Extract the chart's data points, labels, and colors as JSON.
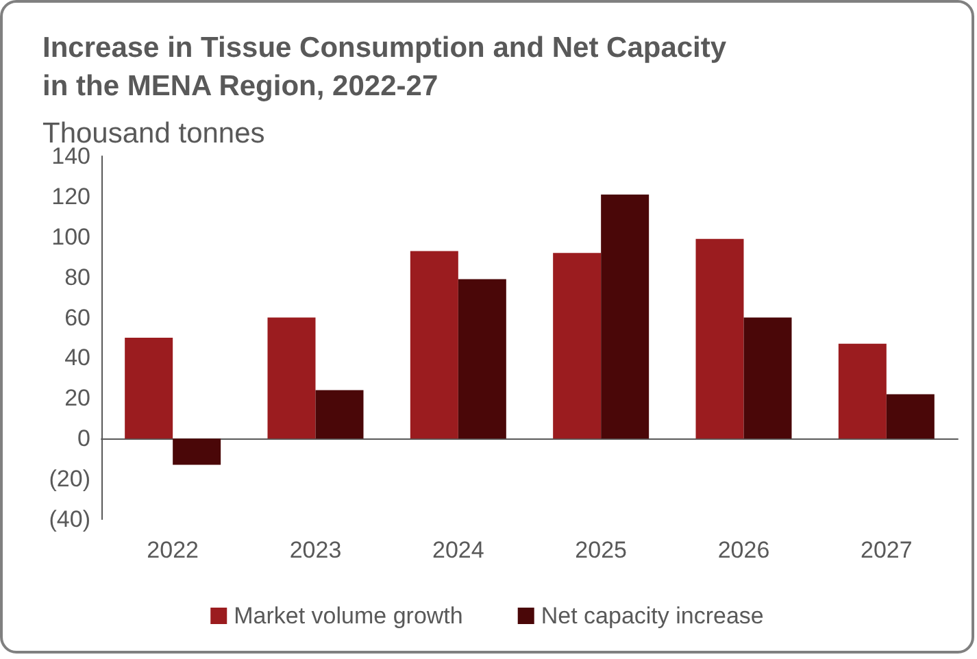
{
  "chart_data": {
    "type": "bar",
    "title": "Increase in Tissue Consumption and Net Capacity\nin the MENA Region, 2022-27",
    "subtitle": "Thousand tonnes",
    "categories": [
      "2022",
      "2023",
      "2024",
      "2025",
      "2026",
      "2027"
    ],
    "series": [
      {
        "name": "Market volume growth",
        "color": "#9b1c1f",
        "values": [
          50,
          60,
          93,
          92,
          99,
          47
        ]
      },
      {
        "name": "Net capacity increase",
        "color": "#4a0708",
        "values": [
          -13,
          24,
          79,
          121,
          60,
          22
        ]
      }
    ],
    "ylim": [
      -40,
      140
    ],
    "yticks": [
      {
        "value": -40,
        "label": "(40)"
      },
      {
        "value": -20,
        "label": "(20)"
      },
      0,
      20,
      40,
      60,
      80,
      100,
      120,
      140
    ],
    "legend": "bottom"
  }
}
